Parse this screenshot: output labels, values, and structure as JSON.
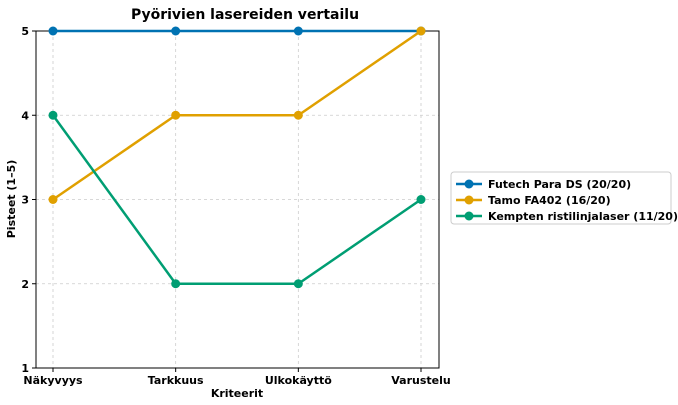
{
  "chart_data": {
    "type": "line",
    "title": "Pyörivien lasereiden vertailu",
    "xlabel": "Kriteerit",
    "ylabel": "Pisteet (1–5)",
    "categories": [
      "Näkyvyys",
      "Tarkkuus",
      "Ulkokäyttö",
      "Varustelu"
    ],
    "ylim": [
      1,
      5
    ],
    "yticks": [
      1,
      2,
      3,
      4,
      5
    ],
    "grid": true,
    "legend_position": "outside-right",
    "series": [
      {
        "name": "Futech Para DS (20/20)",
        "color": "#0072b2",
        "values": [
          5,
          5,
          5,
          5
        ]
      },
      {
        "name": "Tamo FA402 (16/20)",
        "color": "#e0a000",
        "values": [
          3,
          4,
          4,
          5
        ]
      },
      {
        "name": "Kempten ristilinjalaser (11/20)",
        "color": "#009e73",
        "values": [
          4,
          2,
          2,
          3
        ]
      }
    ]
  }
}
